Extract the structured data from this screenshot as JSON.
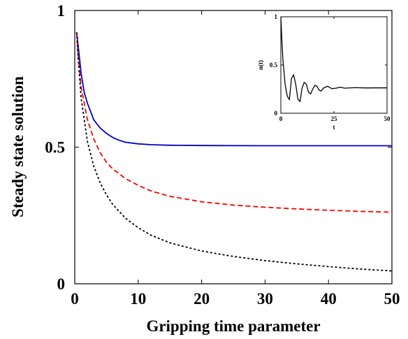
{
  "chart_data": [
    {
      "type": "line",
      "title": "",
      "xlabel": "Gripping time parameter",
      "ylabel": "Steady state solution",
      "xlim": [
        0,
        50
      ],
      "ylim": [
        0,
        1
      ],
      "xticks": [
        0,
        10,
        20,
        30,
        40,
        50
      ],
      "xtick_labels": [
        "0",
        "10",
        "20",
        "30",
        "40",
        "50"
      ],
      "yticks": [
        0,
        0.5,
        1
      ],
      "ytick_labels": [
        "0",
        "0.5",
        "1"
      ],
      "grid": false,
      "series": [
        {
          "style": "solid",
          "color": "#0000cc",
          "x": [
            0.3,
            0.5,
            1,
            1.5,
            2,
            3,
            4,
            5,
            6,
            7,
            8,
            10,
            12,
            15,
            20,
            30,
            40,
            50
          ],
          "y": [
            0.92,
            0.88,
            0.77,
            0.7,
            0.66,
            0.6,
            0.57,
            0.55,
            0.535,
            0.525,
            0.518,
            0.512,
            0.509,
            0.507,
            0.506,
            0.505,
            0.505,
            0.505
          ]
        },
        {
          "style": "dashed",
          "color": "#ff0000",
          "x": [
            0.3,
            0.5,
            1,
            2,
            3,
            4,
            5,
            6,
            8,
            10,
            12,
            15,
            20,
            25,
            30,
            35,
            40,
            45,
            50
          ],
          "y": [
            0.92,
            0.85,
            0.72,
            0.6,
            0.53,
            0.48,
            0.445,
            0.42,
            0.385,
            0.36,
            0.34,
            0.32,
            0.3,
            0.288,
            0.28,
            0.274,
            0.269,
            0.265,
            0.262
          ]
        },
        {
          "style": "dotted",
          "color": "#000000",
          "x": [
            0.3,
            0.5,
            1,
            2,
            3,
            4,
            5,
            6,
            8,
            10,
            12,
            15,
            20,
            25,
            30,
            35,
            40,
            45,
            50
          ],
          "y": [
            0.92,
            0.84,
            0.68,
            0.52,
            0.43,
            0.37,
            0.325,
            0.29,
            0.24,
            0.205,
            0.178,
            0.15,
            0.12,
            0.1,
            0.085,
            0.073,
            0.063,
            0.054,
            0.047
          ]
        }
      ]
    },
    {
      "type": "line",
      "title": "",
      "xlabel": "t",
      "ylabel": "n(t)",
      "xlim": [
        0,
        50
      ],
      "ylim": [
        0,
        1
      ],
      "xticks": [
        0,
        25,
        50
      ],
      "xtick_labels": [
        "0",
        "25",
        "50"
      ],
      "yticks": [
        0,
        0.5,
        1
      ],
      "ytick_labels": [
        "0",
        "0.5",
        "1"
      ],
      "grid": false,
      "series": [
        {
          "style": "solid",
          "color": "#000000",
          "x": [
            0,
            0.5,
            1,
            2,
            3,
            4,
            5,
            6,
            7,
            8,
            9,
            10,
            11,
            12,
            13,
            14,
            15,
            16,
            17,
            18,
            19,
            20,
            22,
            24,
            26,
            28,
            30,
            35,
            40,
            45,
            50
          ],
          "y": [
            1,
            0.75,
            0.55,
            0.3,
            0.18,
            0.14,
            0.36,
            0.4,
            0.3,
            0.15,
            0.12,
            0.26,
            0.32,
            0.3,
            0.22,
            0.2,
            0.25,
            0.29,
            0.28,
            0.24,
            0.23,
            0.26,
            0.28,
            0.255,
            0.26,
            0.27,
            0.26,
            0.265,
            0.262,
            0.263,
            0.263
          ]
        }
      ]
    }
  ]
}
